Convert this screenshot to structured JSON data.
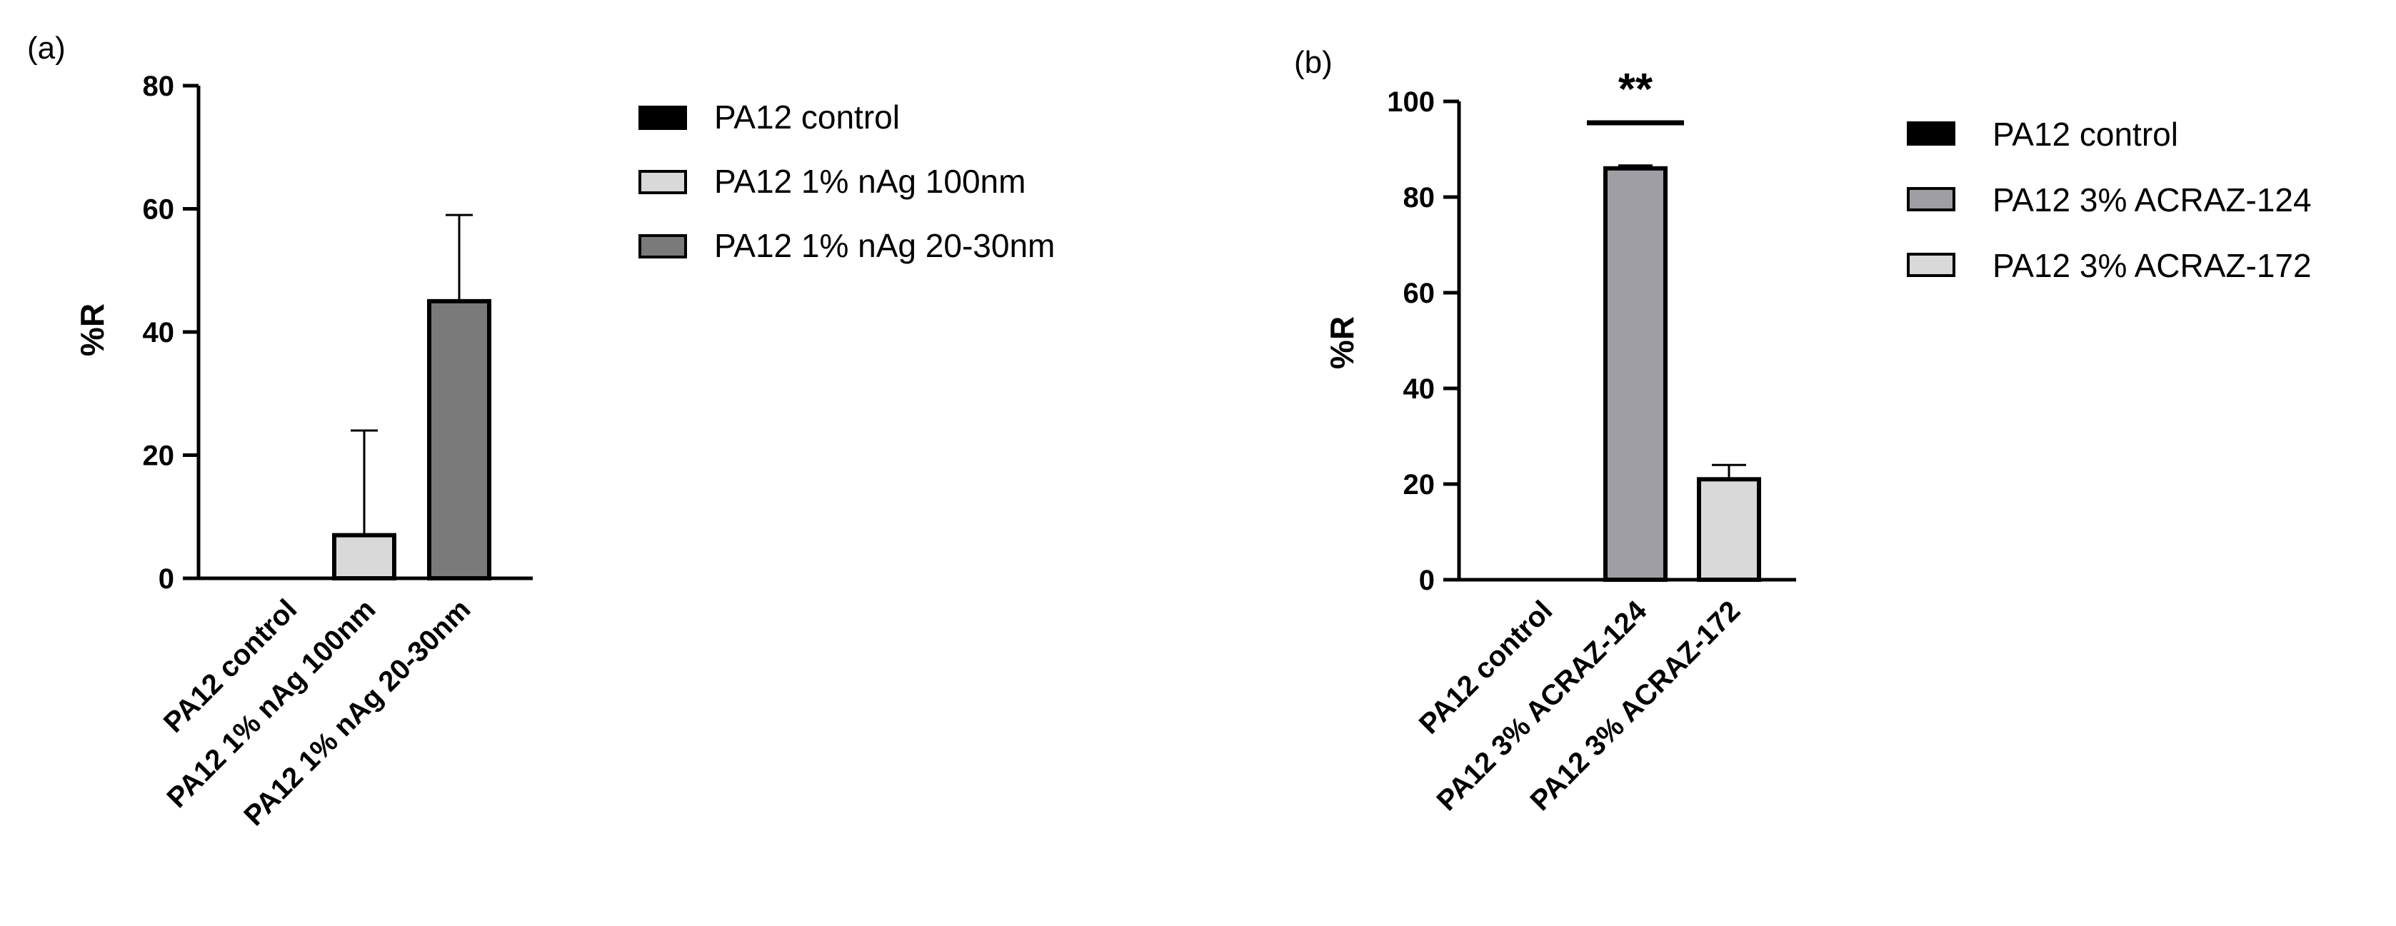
{
  "chart_data": [
    {
      "panel": "(a)",
      "type": "bar",
      "categories": [
        "PA12 control",
        "PA12 1% nAg 100nm",
        "PA12 1% nAg 20-30nm"
      ],
      "values": [
        0,
        7,
        45
      ],
      "errors": [
        0,
        17,
        14
      ],
      "colors": [
        "#000000",
        "#d9d9d9",
        "#7a7a7a"
      ],
      "ylabel": "%R",
      "ylim": [
        0,
        80
      ],
      "yticks": [
        0,
        20,
        40,
        60,
        80
      ],
      "legend": [
        "PA12 control",
        "PA12 1% nAg 100nm",
        "PA12 1% nAg 20-30nm"
      ],
      "legend_position": "right"
    },
    {
      "panel": "(b)",
      "type": "bar",
      "categories": [
        "PA12 control",
        "PA12 3% ACRAZ-124",
        "PA12 3% ACRAZ-172"
      ],
      "values": [
        0,
        86,
        21
      ],
      "errors": [
        0,
        0.6,
        3
      ],
      "colors": [
        "#000000",
        "#9e9ea4",
        "#d9d9d9"
      ],
      "ylabel": "%R",
      "ylim": [
        0,
        100
      ],
      "yticks": [
        0,
        20,
        40,
        60,
        80,
        100
      ],
      "legend": [
        "PA12 control",
        "PA12 3% ACRAZ-124",
        "PA12 3% ACRAZ-172"
      ],
      "legend_position": "right",
      "annotation": "**"
    }
  ]
}
